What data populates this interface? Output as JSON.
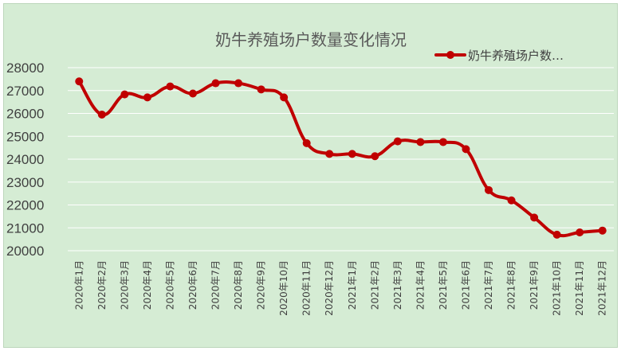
{
  "chart_data": {
    "type": "line",
    "title": "奶牛养殖场户数量变化情况",
    "categories": [
      "2020年1月",
      "2020年2月",
      "2020年3月",
      "2020年4月",
      "2020年5月",
      "2020年6月",
      "2020年7月",
      "2020年8月",
      "2020年9月",
      "2020年10月",
      "2020年11月",
      "2020年12月",
      "2021年1月",
      "2021年2月",
      "2021年3月",
      "2021年4月",
      "2021年5月",
      "2021年6月",
      "2021年7月",
      "2021年8月",
      "2021年9月",
      "2021年10月",
      "2021年11月",
      "2021年12月"
    ],
    "series": [
      {
        "name": "奶牛养殖场户数…",
        "values": [
          27400,
          25950,
          26830,
          26700,
          27180,
          26870,
          27320,
          27320,
          27050,
          26700,
          24700,
          24230,
          24230,
          24130,
          24780,
          24750,
          24750,
          24440,
          22650,
          22200,
          21450,
          20700,
          20800,
          20880
        ],
        "color": "#c00000"
      }
    ],
    "yticks": [
      20000,
      21000,
      22000,
      23000,
      24000,
      25000,
      26000,
      27000,
      28000
    ],
    "ylim": [
      20000,
      28000
    ],
    "xlabel": "",
    "ylabel": "",
    "grid": true,
    "legend_position": "top-right",
    "background_color": "#d5ecd4",
    "gridline_color": "#ffffff"
  }
}
